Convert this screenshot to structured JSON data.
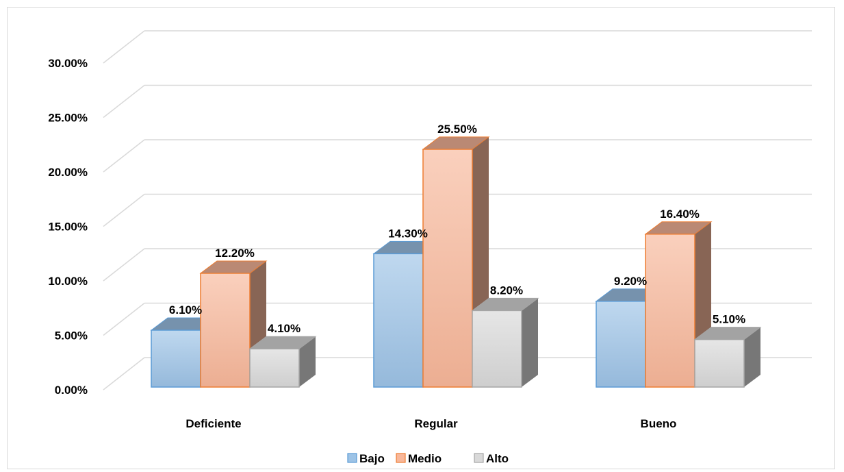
{
  "chart_data": {
    "type": "bar",
    "style": "3d-clustered-column",
    "categories": [
      "Deficiente",
      "Regular",
      "Bueno"
    ],
    "series": [
      {
        "name": "Bajo",
        "values": [
          6.1,
          14.3,
          9.2
        ],
        "labels": [
          "6.10%",
          "14.30%",
          "9.20%"
        ],
        "color": "#9dc3e6",
        "border": "#5b9bd5"
      },
      {
        "name": "Medio",
        "values": [
          12.2,
          25.5,
          16.4
        ],
        "labels": [
          "12.20%",
          "25.50%",
          "16.40%"
        ],
        "color": "#f8b79a",
        "border": "#ed7d31"
      },
      {
        "name": "Alto",
        "values": [
          4.1,
          8.2,
          5.1
        ],
        "labels": [
          "4.10%",
          "8.20%",
          "5.10%"
        ],
        "color": "#d9d9d9",
        "border": "#a5a5a5"
      }
    ],
    "y_ticks": [
      "0.00%",
      "5.00%",
      "10.00%",
      "15.00%",
      "20.00%",
      "25.00%",
      "30.00%"
    ],
    "ylim": [
      0,
      30
    ],
    "y_step": 5,
    "title": "",
    "xlabel": "",
    "ylabel": "",
    "grid": true,
    "legend_position": "bottom"
  }
}
